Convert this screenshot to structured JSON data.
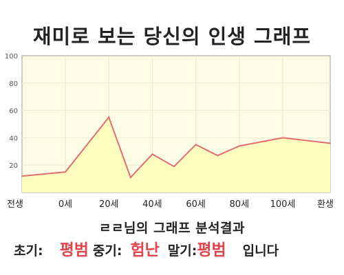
{
  "chart_data": {
    "type": "area",
    "title": "재미로 보는 당신의 인생 그래프",
    "x_ticks": [
      "전생",
      "0세",
      "20세",
      "40세",
      "60세",
      "80세",
      "100세",
      "환생"
    ],
    "points": [
      {
        "x": "전생",
        "y": 12
      },
      {
        "x": "0세",
        "y": 15
      },
      {
        "x": "20세",
        "y": 55
      },
      {
        "x": "30세",
        "y": 11
      },
      {
        "x": "40세",
        "y": 28
      },
      {
        "x": "50세",
        "y": 19
      },
      {
        "x": "60세",
        "y": 35
      },
      {
        "x": "70세",
        "y": 27
      },
      {
        "x": "80세",
        "y": 34
      },
      {
        "x": "100세",
        "y": 40
      },
      {
        "x": "환생",
        "y": 36
      }
    ],
    "ylim": [
      0,
      100
    ],
    "y_ticks": [
      20,
      40,
      60,
      80,
      100
    ],
    "grid": true,
    "colors": {
      "line": "#e26d71",
      "fill": "#fffcc0",
      "background": "#fdfde6",
      "grid": "#ede8c8"
    }
  },
  "summary": {
    "title": "ㄹㄹ님의 그래프 분석결과",
    "early_label": "초기:",
    "early_value": "평범",
    "mid_label": "중기:",
    "mid_value": "험난",
    "late_label": "말기:",
    "late_value": "평범",
    "suffix": "입니다"
  }
}
